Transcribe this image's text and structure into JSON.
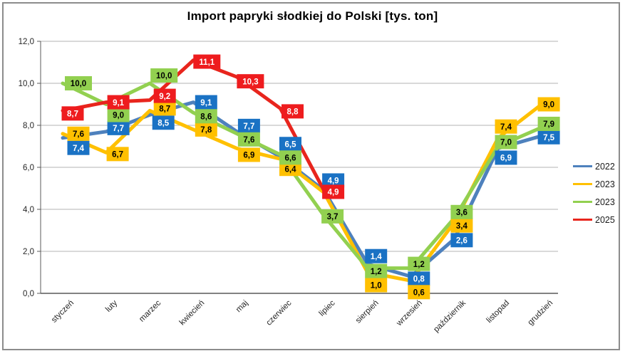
{
  "chart_data": {
    "type": "line",
    "title": "Import papryki słodkiej do Polski [tys. ton]",
    "categories": [
      "styczeń",
      "luty",
      "marzec",
      "kwiecień",
      "maj",
      "czerwiec",
      "lipiec",
      "sierpień",
      "wrzesień",
      "październik",
      "listopad",
      "grudzień"
    ],
    "y_axis": {
      "min": 0,
      "max": 12,
      "step": 2,
      "tick_labels": [
        "0,0",
        "2,0",
        "4,0",
        "6,0",
        "8,0",
        "10,0",
        "12,0"
      ]
    },
    "grid": true,
    "legend_position": "right",
    "colors": {
      "gridline": "#B3B3B3",
      "axis": "#595959",
      "tick_text": "#262626"
    },
    "series": [
      {
        "name": "2022",
        "line_color": "#4E81BD",
        "label_box_color": "#1A72C4",
        "label_text_color": "#FFFFFF",
        "values": [
          7.4,
          7.7,
          8.5,
          9.1,
          7.7,
          6.5,
          4.9,
          1.4,
          0.8,
          2.6,
          6.9,
          7.5
        ],
        "labels": [
          "7,4",
          "7,7",
          "8,5",
          "9,1",
          "7,7",
          "6,5",
          "4,9",
          "1,4",
          "0,8",
          "2,6",
          "6,9",
          "7,5"
        ],
        "label_offsets": [
          [
            22,
            14
          ],
          [
            17,
            -5
          ],
          [
            19,
            11
          ],
          [
            18,
            0
          ],
          [
            17,
            -8
          ],
          [
            14,
            -18
          ],
          [
            13,
            -14
          ],
          [
            12,
            -11
          ],
          [
            11,
            3
          ],
          [
            10,
            2
          ],
          [
            11,
            13
          ],
          [
            10,
            2
          ]
        ]
      },
      {
        "name": "2023",
        "line_color": "#FFC000",
        "label_box_color": "#FFC000",
        "label_text_color": "#000000",
        "values": [
          7.6,
          6.7,
          8.7,
          7.8,
          6.9,
          6.4,
          4.8,
          1.0,
          0.6,
          3.4,
          7.4,
          9.0
        ],
        "labels": [
          "7,6",
          "6,7",
          "8,7",
          "7,8",
          "6,9",
          "6,4",
          null,
          "1,0",
          "0,6",
          "3,4",
          "7,4",
          "9,0"
        ],
        "label_offsets": [
          [
            22,
            0
          ],
          [
            16,
            2
          ],
          [
            21,
            -3
          ],
          [
            18,
            0
          ],
          [
            17,
            9
          ],
          [
            14,
            14
          ],
          [
            0,
            0
          ],
          [
            12,
            18
          ],
          [
            11,
            16
          ],
          [
            10,
            5
          ],
          [
            11,
            -16
          ],
          [
            10,
            0
          ]
        ]
      },
      {
        "name": "2023",
        "line_color": "#92D050",
        "label_box_color": "#92D050",
        "label_text_color": "#000000",
        "values": [
          10.0,
          9.0,
          10.0,
          8.6,
          7.6,
          6.6,
          3.7,
          1.2,
          1.2,
          3.6,
          7.0,
          7.9
        ],
        "labels": [
          "10,0",
          "9,0",
          "10,0",
          "8,6",
          "7,6",
          "6,6",
          "3,7",
          "1,2",
          "1,2",
          "3,6",
          "7,0",
          "7,9"
        ],
        "label_offsets": [
          [
            22,
            0
          ],
          [
            17,
            15
          ],
          [
            20,
            -11
          ],
          [
            18,
            5
          ],
          [
            17,
            8
          ],
          [
            14,
            4
          ],
          [
            12,
            1
          ],
          [
            12,
            4
          ],
          [
            11,
            -6
          ],
          [
            10,
            -8
          ],
          [
            11,
            -6
          ],
          [
            10,
            -5
          ]
        ]
      },
      {
        "name": "2025",
        "line_color": "#E8251D",
        "label_box_color": "#EE1C1E",
        "label_text_color": "#FFFFFF",
        "values": [
          8.7,
          9.1,
          9.2,
          11.1,
          10.3,
          8.8,
          4.9
        ],
        "labels": [
          "8,7",
          "9,1",
          "9,2",
          "11,1",
          "10,3",
          "8,8",
          "4,9"
        ],
        "label_offsets": [
          [
            14,
            4
          ],
          [
            17,
            0
          ],
          [
            21,
            -6
          ],
          [
            19,
            2
          ],
          [
            19,
            6
          ],
          [
            17,
            4
          ],
          [
            13,
            2
          ]
        ]
      }
    ]
  }
}
